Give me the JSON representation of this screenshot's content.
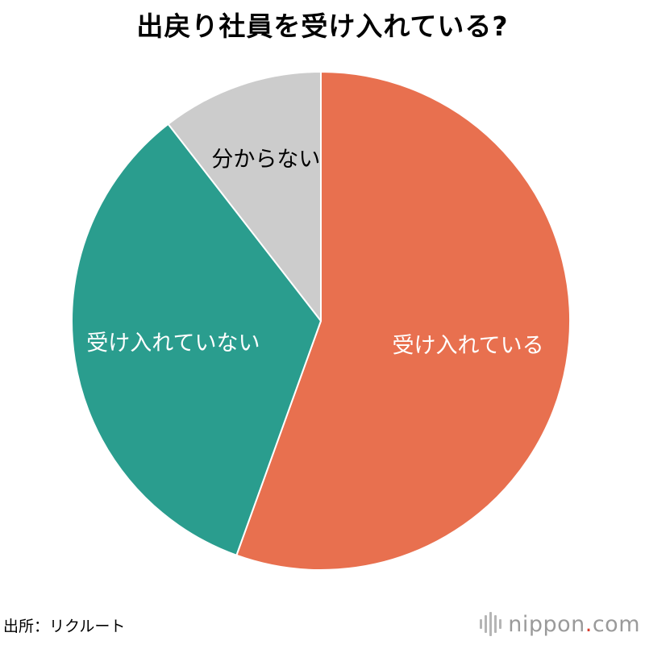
{
  "title": "出戻り社員を受け入れている?",
  "source": "出所：リクルート",
  "logo": {
    "name": "nippon",
    "dot": ".",
    "tld": "com",
    "accent_color": "#d83a2a"
  },
  "chart_data": {
    "type": "pie",
    "title": "出戻り社員を受け入れている?",
    "start_angle_deg": 0,
    "direction": "clockwise",
    "slices": [
      {
        "label": "受け入れている",
        "value": 55.5,
        "color": "#e8704f",
        "label_color": "#ffffff"
      },
      {
        "label": "受け入れていない",
        "value": 34.0,
        "color": "#2a9d8e",
        "label_color": "#ffffff"
      },
      {
        "label": "分からない",
        "value": 10.5,
        "color": "#cccccc",
        "label_color": "#000000"
      }
    ]
  }
}
